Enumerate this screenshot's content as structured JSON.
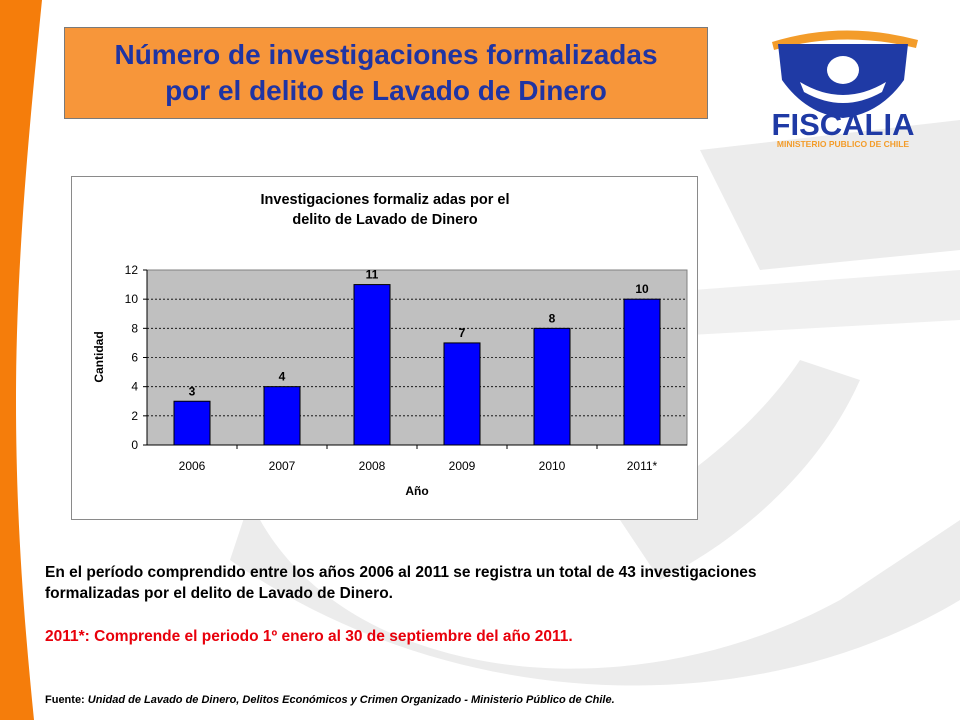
{
  "header": {
    "title_line1": "Número de investigaciones formalizadas",
    "title_line2": "por el delito de Lavado de Dinero"
  },
  "logo": {
    "name": "FISCALIA",
    "subtitle": "MINISTERIO PUBLICO DE CHILE",
    "icon": "fiscalia-emblem-icon"
  },
  "colors": {
    "title_bg": "#f7963a",
    "title_text": "#1f34a3",
    "bar": "#0000ff",
    "plot_bg": "#c0c0c0",
    "note": "#e8000b",
    "left_band": "#f57d0b",
    "logo_orange": "#f39c2a",
    "logo_blue": "#1f3aa5"
  },
  "chart_data": {
    "type": "bar",
    "title": "Investigaciones formalizadas por el delito de Lavado de Dinero",
    "title_lines": [
      "Investigaciones formaliz adas por el",
      "delito de Lavado de Dinero"
    ],
    "categories": [
      "2006",
      "2007",
      "2008",
      "2009",
      "2010",
      "2011*"
    ],
    "values": [
      3,
      4,
      11,
      7,
      8,
      10
    ],
    "xlabel": "Año",
    "ylabel": "Cantidad",
    "ylim": [
      0,
      12
    ],
    "yticks": [
      0,
      2,
      4,
      6,
      8,
      10,
      12
    ],
    "grid": true,
    "legend": "none"
  },
  "text": {
    "summary_line1": "En el período comprendido entre los años 2006 al 2011 se registra un total de 43 investigaciones",
    "summary_line2": "formalizadas por el delito de Lavado de Dinero.",
    "note": "2011*: Comprende el periodo 1º enero al 30 de septiembre del año 2011.",
    "source_label": "Fuente:",
    "source_text": " Unidad de Lavado de Dinero, Delitos Económicos y Crimen Organizado - Ministerio Público de Chile."
  }
}
